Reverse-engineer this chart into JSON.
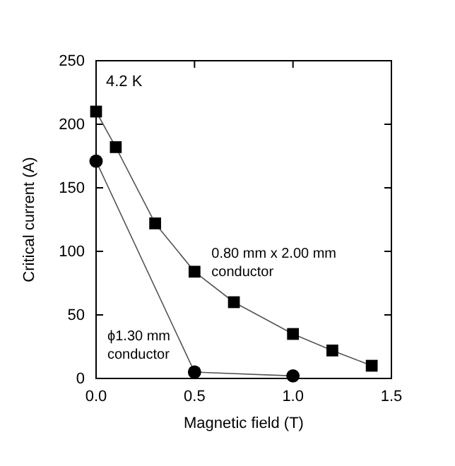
{
  "chart_data": {
    "type": "line",
    "xlabel": "Magnetic field (T)",
    "ylabel": "Critical current (A)",
    "x": [
      0,
      0.1,
      0.3,
      0.5,
      0.7,
      1.0,
      1.2,
      1.4
    ],
    "series": [
      {
        "name": "0.80 mm x 2.00 mm conductor",
        "color": "#000000",
        "marker": "square",
        "values": [
          210,
          182,
          122,
          84,
          60,
          35,
          22,
          10
        ]
      },
      {
        "name": "ϕ1.30 mm conductor",
        "color": "#000000",
        "marker": "circle",
        "x": [
          0,
          0.5,
          1.0
        ],
        "values": [
          171,
          5,
          2
        ]
      }
    ],
    "xlim": [
      0,
      1.5
    ],
    "xticks": [
      {
        "value": 0,
        "label": "0.0"
      },
      {
        "value": 0.5,
        "label": "0.5"
      },
      {
        "value": 1,
        "label": "1.0"
      },
      {
        "value": 1.5,
        "label": "1.5"
      }
    ],
    "ylim": [
      0,
      250
    ],
    "yticks": [
      0,
      50,
      100,
      150,
      200,
      250
    ],
    "annotations": [
      "4.2 K"
    ],
    "grid": false,
    "legend": false,
    "line_style": "solid"
  }
}
